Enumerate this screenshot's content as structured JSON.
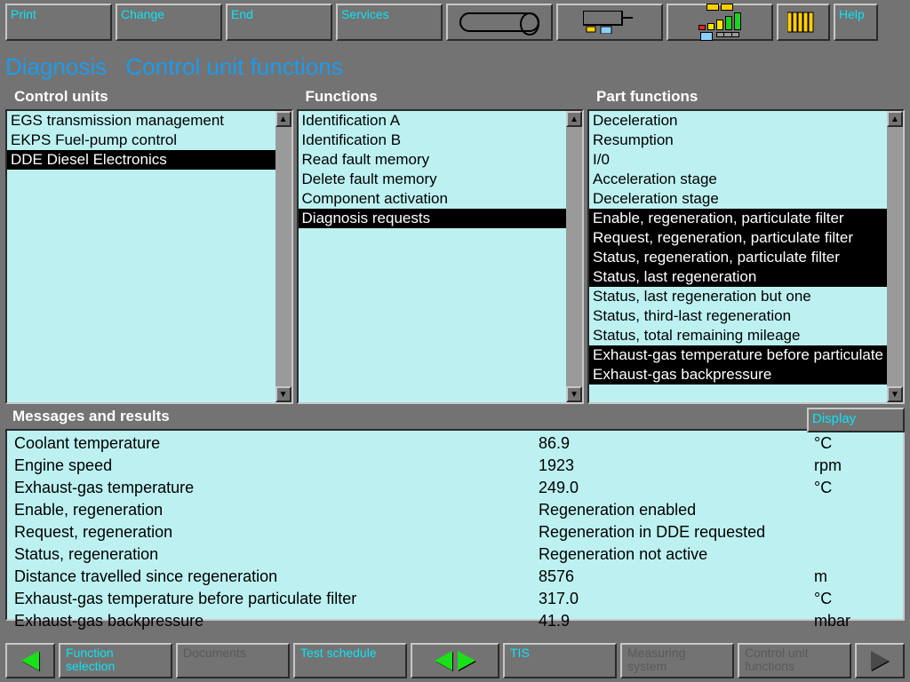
{
  "toolbar": {
    "print": "Print",
    "change": "Change",
    "end": "End",
    "services": "Services",
    "help": "Help"
  },
  "header": {
    "main": "Diagnosis",
    "sub": "Control unit functions"
  },
  "panels": {
    "control_units": {
      "title": "Control units",
      "items": [
        {
          "label": "EGS transmission management",
          "selected": false
        },
        {
          "label": "EKPS Fuel-pump control",
          "selected": false
        },
        {
          "label": "DDE Diesel Electronics",
          "selected": true
        }
      ]
    },
    "functions": {
      "title": "Functions",
      "items": [
        {
          "label": "Identification A",
          "selected": false
        },
        {
          "label": "Identification B",
          "selected": false
        },
        {
          "label": "Read fault memory",
          "selected": false
        },
        {
          "label": "Delete fault memory",
          "selected": false
        },
        {
          "label": "Component activation",
          "selected": false
        },
        {
          "label": "Diagnosis requests",
          "selected": true
        }
      ]
    },
    "part_functions": {
      "title": "Part functions",
      "items": [
        {
          "label": "Deceleration",
          "selected": false
        },
        {
          "label": "Resumption",
          "selected": false
        },
        {
          "label": "I/0",
          "selected": false
        },
        {
          "label": "Acceleration stage",
          "selected": false
        },
        {
          "label": "Deceleration stage",
          "selected": false
        },
        {
          "label": "Enable, regeneration, particulate filter",
          "selected": true
        },
        {
          "label": "Request, regeneration, particulate filter",
          "selected": true
        },
        {
          "label": "Status, regeneration, particulate filter",
          "selected": true
        },
        {
          "label": "Status, last regeneration",
          "selected": true
        },
        {
          "label": "Status, last regeneration but one",
          "selected": false
        },
        {
          "label": "Status, third-last regeneration",
          "selected": false
        },
        {
          "label": "Status, total remaining mileage",
          "selected": false
        },
        {
          "label": "Exhaust-gas temperature before particulate",
          "selected": true
        },
        {
          "label": "Exhaust-gas backpressure",
          "selected": true
        }
      ]
    }
  },
  "display_button": "Display",
  "messages": {
    "title": "Messages and results",
    "rows": [
      {
        "label": "Coolant temperature",
        "value": "86.9",
        "unit": "°C"
      },
      {
        "label": "Engine speed",
        "value": "1923",
        "unit": "rpm"
      },
      {
        "label": "Exhaust-gas temperature",
        "value": "249.0",
        "unit": "°C"
      },
      {
        "label": "Enable, regeneration",
        "value": "Regeneration enabled",
        "unit": ""
      },
      {
        "label": "Request, regeneration",
        "value": "Regeneration in DDE requested",
        "unit": ""
      },
      {
        "label": "Status, regeneration",
        "value": "Regeneration not active",
        "unit": ""
      },
      {
        "label": "Distance travelled since regeneration",
        "value": "8576",
        "unit": "m"
      },
      {
        "label": "Exhaust-gas temperature before particulate filter",
        "value": "317.0",
        "unit": "°C"
      },
      {
        "label": "Exhaust-gas backpressure",
        "value": "41.9",
        "unit": "mbar"
      }
    ]
  },
  "bottom": {
    "function_selection": "Function selection",
    "documents": "Documents",
    "test_schedule": "Test schedule",
    "tis": "TIS",
    "measuring_system": "Measuring system",
    "control_unit_functions": "Control unit functions"
  },
  "colors": {
    "bg": "#737373",
    "panel_bg": "#bdf1f1",
    "accent_text": "#0ae5f5",
    "title_text": "#1a9cf0",
    "sel_bg": "#000000",
    "sel_fg": "#ffffff"
  },
  "icon_chart": {
    "bars": [
      {
        "h": 6,
        "c": "#ff2020"
      },
      {
        "h": 8,
        "c": "#ffe600"
      },
      {
        "h": 12,
        "c": "#ffe600"
      },
      {
        "h": 16,
        "c": "#20d020"
      },
      {
        "h": 20,
        "c": "#20d020"
      }
    ]
  }
}
